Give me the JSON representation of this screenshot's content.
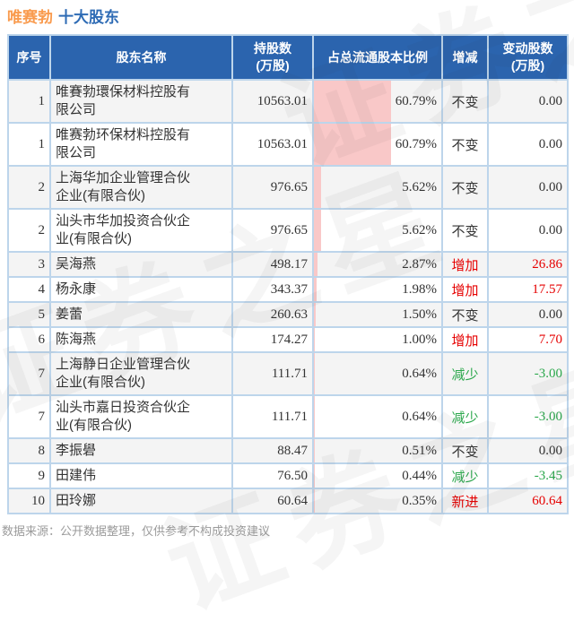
{
  "title": {
    "stock": "唯赛勃",
    "section": "十大股东"
  },
  "watermark": {
    "text": "证券之星"
  },
  "footer": {
    "note": "数据来源：公开数据整理，仅供参考不构成投资建议"
  },
  "colors": {
    "header_bg": "#2b64ae",
    "title_stock": "#f99b4e",
    "title_section": "#2f6cb5",
    "increase_red": "#e60000",
    "decrease_green": "#2aa74b",
    "bar_pink": "#f9c8c8",
    "row_stripe": "#f4f4f4",
    "grid_border": "#bdd5eb"
  },
  "chart_data": {
    "type": "table",
    "title": "唯赛勃 十大股东",
    "bar_column": "占总流通股本比例",
    "bar_scale_note": "pink bar width = percent of column width, 0-100%",
    "columns": [
      {
        "key": "rank",
        "label": "序号"
      },
      {
        "key": "name",
        "label": "股东名称"
      },
      {
        "key": "shares",
        "label": "持股数",
        "sub": "(万股)"
      },
      {
        "key": "pct",
        "label": "占总流通股本比例"
      },
      {
        "key": "change",
        "label": "增减"
      },
      {
        "key": "delta",
        "label": "变动股数",
        "sub": "(万股)"
      }
    ],
    "rows": [
      {
        "rank": "1",
        "name": "唯賽勃環保材料控股有限公司",
        "shares": "10563.01",
        "pct": "60.79%",
        "pct_value": 60.79,
        "change": "不变",
        "change_type": "flat",
        "delta": "0.00"
      },
      {
        "rank": "1",
        "name": "唯赛勃环保材料控股有限公司",
        "shares": "10563.01",
        "pct": "60.79%",
        "pct_value": 60.79,
        "change": "不变",
        "change_type": "flat",
        "delta": "0.00"
      },
      {
        "rank": "2",
        "name": "上海华加企业管理合伙企业(有限合伙)",
        "shares": "976.65",
        "pct": "5.62%",
        "pct_value": 5.62,
        "change": "不变",
        "change_type": "flat",
        "delta": "0.00"
      },
      {
        "rank": "2",
        "name": "汕头市华加投资合伙企业(有限合伙)",
        "shares": "976.65",
        "pct": "5.62%",
        "pct_value": 5.62,
        "change": "不变",
        "change_type": "flat",
        "delta": "0.00"
      },
      {
        "rank": "3",
        "name": "吴海燕",
        "shares": "498.17",
        "pct": "2.87%",
        "pct_value": 2.87,
        "change": "增加",
        "change_type": "up",
        "delta": "26.86"
      },
      {
        "rank": "4",
        "name": "杨永康",
        "shares": "343.37",
        "pct": "1.98%",
        "pct_value": 1.98,
        "change": "增加",
        "change_type": "up",
        "delta": "17.57"
      },
      {
        "rank": "5",
        "name": "姜蕾",
        "shares": "260.63",
        "pct": "1.50%",
        "pct_value": 1.5,
        "change": "不变",
        "change_type": "flat",
        "delta": "0.00"
      },
      {
        "rank": "6",
        "name": "陈海燕",
        "shares": "174.27",
        "pct": "1.00%",
        "pct_value": 1.0,
        "change": "增加",
        "change_type": "up",
        "delta": "7.70"
      },
      {
        "rank": "7",
        "name": "上海静日企业管理合伙企业(有限合伙)",
        "shares": "111.71",
        "pct": "0.64%",
        "pct_value": 0.64,
        "change": "减少",
        "change_type": "down",
        "delta": "-3.00"
      },
      {
        "rank": "7",
        "name": "汕头市嘉日投资合伙企业(有限合伙)",
        "shares": "111.71",
        "pct": "0.64%",
        "pct_value": 0.64,
        "change": "减少",
        "change_type": "down",
        "delta": "-3.00"
      },
      {
        "rank": "8",
        "name": "李振礐",
        "shares": "88.47",
        "pct": "0.51%",
        "pct_value": 0.51,
        "change": "不变",
        "change_type": "flat",
        "delta": "0.00"
      },
      {
        "rank": "9",
        "name": "田建伟",
        "shares": "76.50",
        "pct": "0.44%",
        "pct_value": 0.44,
        "change": "减少",
        "change_type": "down",
        "delta": "-3.45"
      },
      {
        "rank": "10",
        "name": "田玲娜",
        "shares": "60.64",
        "pct": "0.35%",
        "pct_value": 0.35,
        "change": "新进",
        "change_type": "new",
        "delta": "60.64"
      }
    ]
  }
}
